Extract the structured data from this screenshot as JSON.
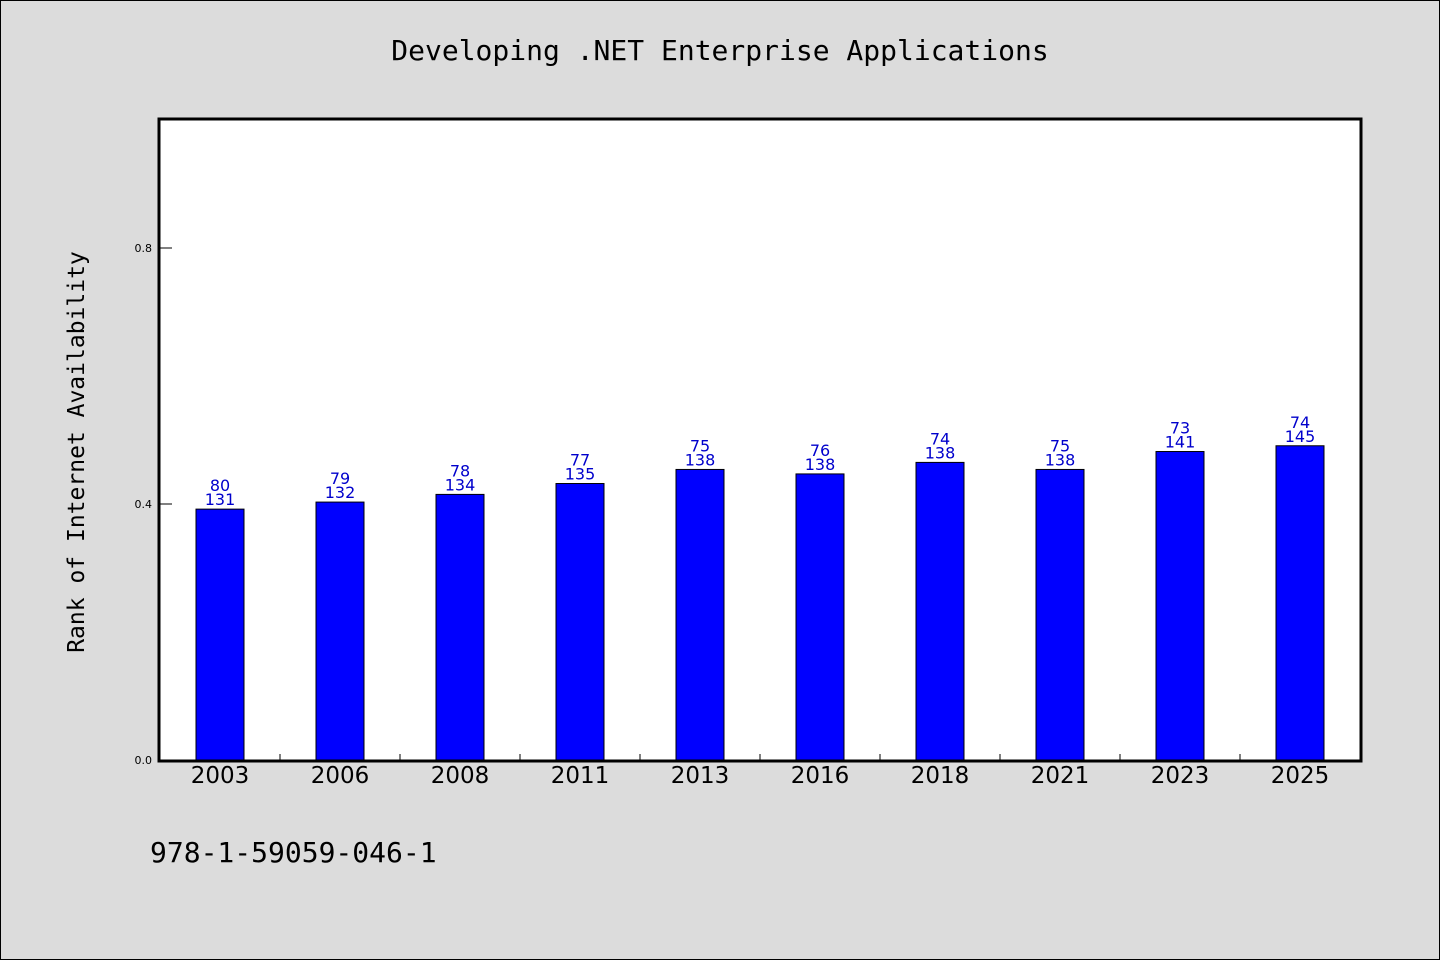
{
  "chart_data": {
    "type": "bar",
    "title": "Developing .NET Enterprise Applications",
    "xlabel": "",
    "ylabel": "Rank of Internet Availability",
    "categories": [
      "2003",
      "2006",
      "2008",
      "2011",
      "2013",
      "2016",
      "2018",
      "2021",
      "2023",
      "2025"
    ],
    "values": [
      0.392,
      0.403,
      0.415,
      0.432,
      0.454,
      0.447,
      0.465,
      0.454,
      0.482,
      0.491
    ],
    "data_labels": [
      [
        "80",
        "131"
      ],
      [
        "79",
        "132"
      ],
      [
        "78",
        "134"
      ],
      [
        "77",
        "135"
      ],
      [
        "75",
        "138"
      ],
      [
        "76",
        "138"
      ],
      [
        "74",
        "138"
      ],
      [
        "75",
        "138"
      ],
      [
        "73",
        "141"
      ],
      [
        "74",
        "145"
      ]
    ],
    "ylim": [
      0,
      1.0
    ],
    "y_ticks": [
      "0.0",
      "0.4",
      "0.8"
    ],
    "grid": false,
    "bar_color": "#0000ff",
    "label_color": "#0000cc"
  },
  "footer": {
    "isbn": "978-1-59059-046-1"
  }
}
